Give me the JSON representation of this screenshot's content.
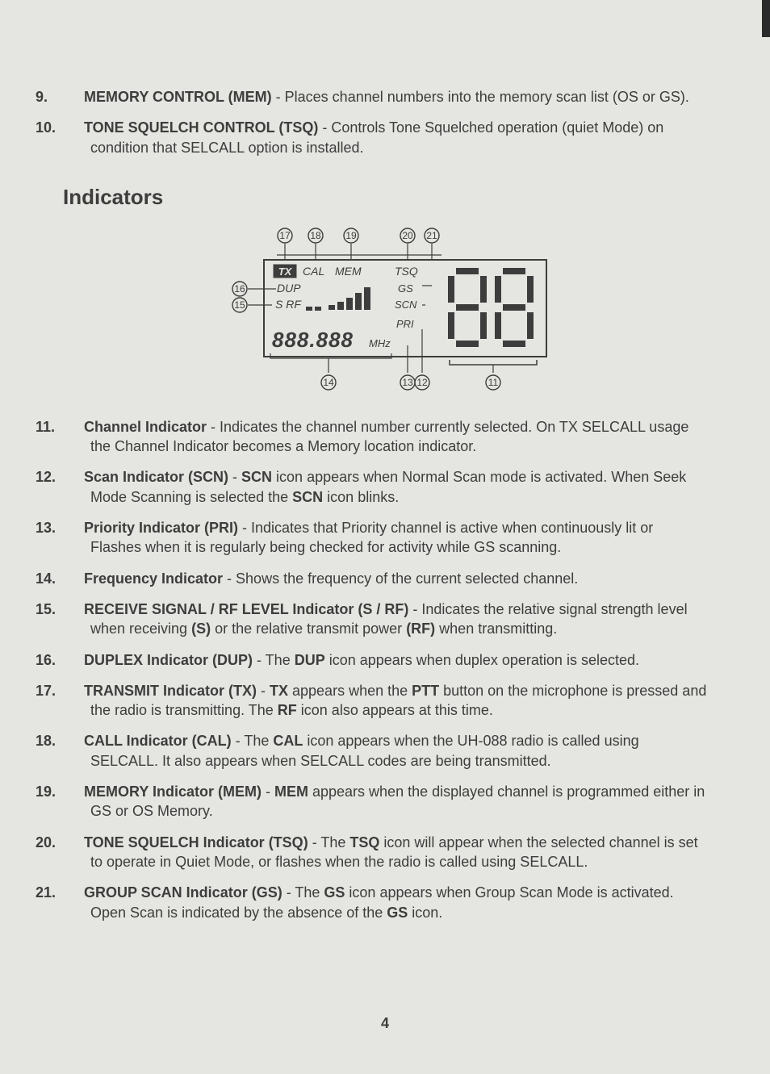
{
  "colors": {
    "page_bg": "#e5e5e1",
    "text": "#3d3d3d",
    "diagram_stroke": "#3d3d3d",
    "diagram_fill_dark": "#3d3d3d"
  },
  "typography": {
    "body_fontsize_pt": 13,
    "heading_fontsize_pt": 19,
    "font_family": "Arial"
  },
  "page_number": "4",
  "top_items": [
    {
      "num": "9.",
      "title": "MEMORY CONTROL (MEM)",
      "desc": " - Places channel numbers into the memory scan list (OS or GS)."
    },
    {
      "num": "10.",
      "title": "TONE SQUELCH CONTROL (TSQ)",
      "desc": " - Controls Tone Squelched operation (quiet Mode) on condition that SELCALL option is installed."
    }
  ],
  "section_heading": "Indicators",
  "diagram": {
    "callouts_top": [
      "17",
      "18",
      "19",
      "20",
      "21"
    ],
    "callouts_left": [
      "16",
      "15"
    ],
    "callouts_bottom": [
      "14",
      "13",
      "12",
      "11"
    ],
    "lcd": {
      "row1": {
        "tx": "TX",
        "cal": "CAL",
        "mem": "MEM",
        "tsq": "TSQ"
      },
      "row2": {
        "dup": "DUP",
        "gs": "GS"
      },
      "row3": {
        "srf": "S RF",
        "scn": "SCN"
      },
      "row4": {
        "freq": "888.888",
        "mhz": "MHz",
        "pri": "PRI"
      },
      "channel_digits": "88"
    }
  },
  "bottom_items": [
    {
      "num": "11.",
      "title": "Channel Indicator",
      "desc_html": " - Indicates the channel number currently selected. On TX SELCALL usage the Channel Indicator becomes a Memory location indicator."
    },
    {
      "num": "12.",
      "title": "Scan Indicator (SCN)",
      "desc_html": " - <b>SCN</b> icon appears when Normal Scan mode is activated. When Seek Mode Scanning is selected the <b>SCN</b> icon blinks."
    },
    {
      "num": "13.",
      "title": "Priority Indicator (PRI)",
      "desc_html": " - Indicates that Priority channel is active when continuously lit or Flashes when it is regularly being checked for activity while GS scanning."
    },
    {
      "num": "14.",
      "title": "Frequency Indicator",
      "desc_html": " - Shows the frequency of the current selected channel."
    },
    {
      "num": "15.",
      "title": "RECEIVE SIGNAL / RF LEVEL Indicator (S / RF)",
      "desc_html": " - Indicates the relative signal strength level when receiving <b>(S)</b> or the relative transmit power <b>(RF)</b> when transmitting."
    },
    {
      "num": "16.",
      "title": "DUPLEX Indicator (DUP)",
      "desc_html": " - The <b>DUP</b> icon appears when duplex operation is selected."
    },
    {
      "num": "17.",
      "title": "TRANSMIT Indicator (TX)",
      "desc_html": " - <b>TX</b> appears when the <b>PTT</b> button on the microphone is pressed and the radio is transmitting. The <b>RF</b> icon also appears at this time."
    },
    {
      "num": "18.",
      "title": "CALL Indicator (CAL)",
      "desc_html": " - The <b>CAL</b> icon appears when the UH-088 radio is called using SELCALL. It also appears when SELCALL codes are being transmitted."
    },
    {
      "num": "19.",
      "title": "MEMORY Indicator (MEM)",
      "desc_html": " - <b>MEM</b> appears when the displayed channel is programmed either in GS or OS Memory."
    },
    {
      "num": "20.",
      "title": "TONE SQUELCH Indicator (TSQ)",
      "desc_html": " - The <b>TSQ</b> icon will appear when the selected channel is set to operate in Quiet Mode, or flashes when the radio is called using SELCALL."
    },
    {
      "num": "21.",
      "title": "GROUP SCAN Indicator (GS)",
      "desc_html": " - The <b>GS</b> icon appears when Group Scan Mode is activated. Open Scan is indicated by the absence of the <b>GS</b> icon."
    }
  ]
}
